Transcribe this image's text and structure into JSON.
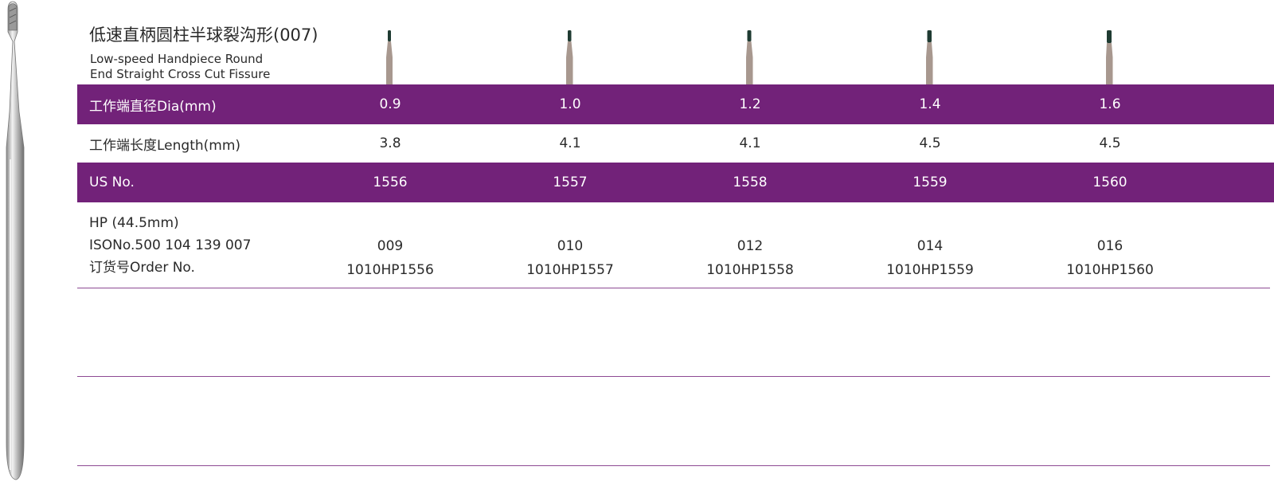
{
  "header": {
    "title_zh": "低速直柄圆柱半球裂沟形(007)",
    "title_en_line1": "Low-speed Handpiece  Round",
    "title_en_line2": "End Straight Cross Cut Fissure"
  },
  "table": {
    "rows": {
      "dia": {
        "label": "工作端直径Dia(mm)",
        "values": [
          "0.9",
          "1.0",
          "1.2",
          "1.4",
          "1.6"
        ]
      },
      "length": {
        "label": "工作端长度Length(mm)",
        "values": [
          "3.8",
          "4.1",
          "4.1",
          "4.5",
          "4.5"
        ]
      },
      "us": {
        "label": "US No.",
        "values": [
          "1556",
          "1557",
          "1558",
          "1559",
          "1560"
        ]
      },
      "order": {
        "label_line1": "HP (44.5mm)",
        "label_line2": "ISONo.500 104 139 007",
        "label_line3": "订货号Order No.",
        "iso": [
          "009",
          "010",
          "012",
          "014",
          "016"
        ],
        "order_no": [
          "1010HP1556",
          "1010HP1557",
          "1010HP1558",
          "1010HP1559",
          "1010HP1560"
        ]
      }
    }
  },
  "colors": {
    "band": "#722279",
    "rule": "#8d4a93",
    "bur_head": "#1f3b32",
    "bur_neck": "#a8988f"
  },
  "icons": [
    "bur-shank-illustration",
    "bur-head-icon"
  ]
}
